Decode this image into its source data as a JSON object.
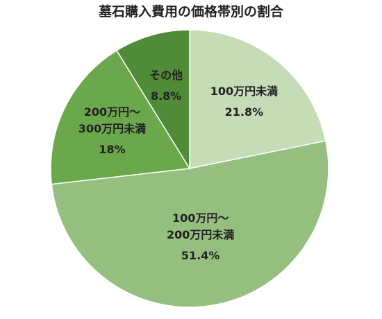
{
  "chart_data": {
    "type": "pie",
    "title": "墓石購入費用の価格帯別の割合",
    "categories": [
      "100万円未満",
      "100万円～\n200万円未満",
      "200万円～\n300万円未満",
      "その他"
    ],
    "values": [
      21.8,
      51.4,
      18,
      8.8
    ],
    "value_labels": [
      "21.8%",
      "51.4%",
      "18%",
      "8.8%"
    ],
    "colors": [
      "#c6dcb6",
      "#94bf7f",
      "#6ba74b",
      "#508b38"
    ]
  }
}
